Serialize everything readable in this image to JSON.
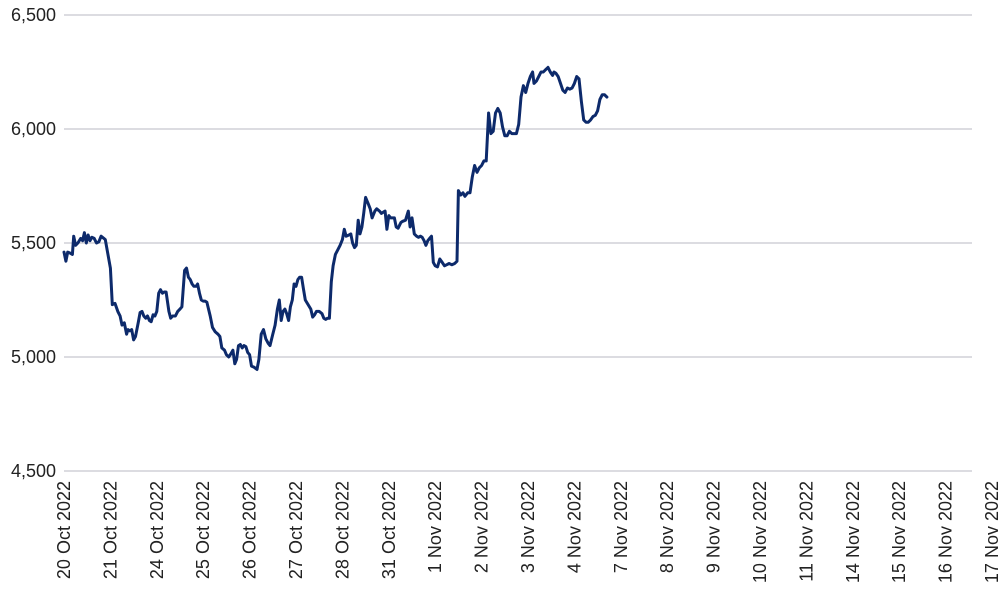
{
  "chart_data": {
    "type": "line",
    "title": "",
    "xlabel": "",
    "ylabel": "",
    "ylim": [
      4500,
      6500
    ],
    "yticks": [
      4500,
      5000,
      5500,
      6000,
      6500
    ],
    "ytick_labels": [
      "4,500",
      "5,000",
      "5,500",
      "6,000",
      "6,500"
    ],
    "grid": "horizontal",
    "legend": "none",
    "line_color": "#0d2a6b",
    "grid_color": "#b9b9c3",
    "x_tick_labels": [
      "20 Oct 2022",
      "21 Oct 2022",
      "24 Oct 2022",
      "25 Oct 2022",
      "26 Oct 2022",
      "27 Oct 2022",
      "28 Oct 2022",
      "31 Oct 2022",
      "1 Nov 2022",
      "2 Nov 2022",
      "3 Nov 2022",
      "4 Nov 2022",
      "7 Nov 2022",
      "8 Nov 2022",
      "9 Nov 2022",
      "10 Nov 2022",
      "11 Nov 2022",
      "14 Nov 2022",
      "15 Nov 2022",
      "16 Nov 2022",
      "17 Nov 2022"
    ],
    "series": [
      {
        "values": [
          [
            0.0,
            5460
          ],
          [
            0.04,
            5420
          ],
          [
            0.08,
            5460
          ],
          [
            0.14,
            5455
          ],
          [
            0.18,
            5450
          ],
          [
            0.21,
            5530
          ],
          [
            0.25,
            5490
          ],
          [
            0.3,
            5500
          ],
          [
            0.36,
            5520
          ],
          [
            0.4,
            5510
          ],
          [
            0.44,
            5545
          ],
          [
            0.48,
            5500
          ],
          [
            0.52,
            5535
          ],
          [
            0.56,
            5510
          ],
          [
            0.6,
            5525
          ],
          [
            0.65,
            5520
          ],
          [
            0.7,
            5500
          ],
          [
            0.75,
            5505
          ],
          [
            0.8,
            5530
          ],
          [
            0.86,
            5520
          ],
          [
            0.89,
            5515
          ],
          [
            1.0,
            5390
          ],
          [
            1.04,
            5230
          ],
          [
            1.1,
            5235
          ],
          [
            1.16,
            5200
          ],
          [
            1.21,
            5180
          ],
          [
            1.25,
            5140
          ],
          [
            1.3,
            5150
          ],
          [
            1.35,
            5100
          ],
          [
            1.38,
            5120
          ],
          [
            1.42,
            5115
          ],
          [
            1.46,
            5120
          ],
          [
            1.5,
            5075
          ],
          [
            1.54,
            5090
          ],
          [
            1.6,
            5150
          ],
          [
            1.64,
            5195
          ],
          [
            1.68,
            5200
          ],
          [
            1.72,
            5180
          ],
          [
            1.76,
            5170
          ],
          [
            1.8,
            5180
          ],
          [
            1.84,
            5160
          ],
          [
            1.88,
            5155
          ],
          [
            1.92,
            5185
          ],
          [
            1.96,
            5180
          ],
          [
            2.0,
            5200
          ],
          [
            2.04,
            5280
          ],
          [
            2.08,
            5295
          ],
          [
            2.12,
            5280
          ],
          [
            2.16,
            5285
          ],
          [
            2.2,
            5285
          ],
          [
            2.26,
            5200
          ],
          [
            2.3,
            5170
          ],
          [
            2.34,
            5180
          ],
          [
            2.4,
            5180
          ],
          [
            2.45,
            5200
          ],
          [
            2.5,
            5210
          ],
          [
            2.54,
            5220
          ],
          [
            2.6,
            5380
          ],
          [
            2.64,
            5390
          ],
          [
            2.68,
            5350
          ],
          [
            2.72,
            5340
          ],
          [
            2.76,
            5320
          ],
          [
            2.8,
            5310
          ],
          [
            2.85,
            5310
          ],
          [
            2.88,
            5320
          ],
          [
            2.92,
            5280
          ],
          [
            2.96,
            5250
          ],
          [
            3.0,
            5245
          ],
          [
            3.04,
            5245
          ],
          [
            3.08,
            5240
          ],
          [
            3.15,
            5180
          ],
          [
            3.2,
            5130
          ],
          [
            3.26,
            5110
          ],
          [
            3.32,
            5100
          ],
          [
            3.36,
            5090
          ],
          [
            3.4,
            5040
          ],
          [
            3.46,
            5030
          ],
          [
            3.5,
            5010
          ],
          [
            3.55,
            5000
          ],
          [
            3.6,
            5015
          ],
          [
            3.64,
            5030
          ],
          [
            3.68,
            4970
          ],
          [
            3.72,
            4990
          ],
          [
            3.76,
            5050
          ],
          [
            3.8,
            5055
          ],
          [
            3.84,
            5040
          ],
          [
            3.88,
            5050
          ],
          [
            3.92,
            5045
          ],
          [
            3.96,
            5020
          ],
          [
            4.0,
            5010
          ],
          [
            4.04,
            4960
          ],
          [
            4.1,
            4955
          ],
          [
            4.16,
            4945
          ],
          [
            4.2,
            4990
          ],
          [
            4.25,
            5100
          ],
          [
            4.3,
            5120
          ],
          [
            4.35,
            5080
          ],
          [
            4.4,
            5060
          ],
          [
            4.44,
            5050
          ],
          [
            4.5,
            5100
          ],
          [
            4.55,
            5140
          ],
          [
            4.6,
            5210
          ],
          [
            4.64,
            5250
          ],
          [
            4.68,
            5160
          ],
          [
            4.72,
            5200
          ],
          [
            4.76,
            5210
          ],
          [
            4.8,
            5190
          ],
          [
            4.84,
            5160
          ],
          [
            4.88,
            5220
          ],
          [
            4.92,
            5250
          ],
          [
            4.96,
            5320
          ],
          [
            5.0,
            5310
          ],
          [
            5.04,
            5340
          ],
          [
            5.08,
            5350
          ],
          [
            5.12,
            5350
          ],
          [
            5.16,
            5300
          ],
          [
            5.2,
            5250
          ],
          [
            5.26,
            5230
          ],
          [
            5.32,
            5210
          ],
          [
            5.36,
            5175
          ],
          [
            5.4,
            5185
          ],
          [
            5.44,
            5200
          ],
          [
            5.5,
            5200
          ],
          [
            5.56,
            5190
          ],
          [
            5.6,
            5170
          ],
          [
            5.64,
            5165
          ],
          [
            5.68,
            5170
          ],
          [
            5.72,
            5170
          ],
          [
            5.76,
            5330
          ],
          [
            5.8,
            5400
          ],
          [
            5.85,
            5450
          ],
          [
            5.9,
            5470
          ],
          [
            5.95,
            5490
          ],
          [
            6.0,
            5515
          ],
          [
            6.04,
            5560
          ],
          [
            6.08,
            5530
          ],
          [
            6.14,
            5535
          ],
          [
            6.18,
            5540
          ],
          [
            6.22,
            5500
          ],
          [
            6.26,
            5480
          ],
          [
            6.3,
            5490
          ],
          [
            6.34,
            5600
          ],
          [
            6.38,
            5540
          ],
          [
            6.42,
            5570
          ],
          [
            6.46,
            5630
          ],
          [
            6.5,
            5700
          ],
          [
            6.56,
            5670
          ],
          [
            6.6,
            5650
          ],
          [
            6.64,
            5610
          ],
          [
            6.7,
            5640
          ],
          [
            6.74,
            5650
          ],
          [
            6.8,
            5640
          ],
          [
            6.84,
            5630
          ],
          [
            6.88,
            5635
          ],
          [
            6.92,
            5640
          ],
          [
            6.96,
            5560
          ],
          [
            7.0,
            5620
          ],
          [
            7.04,
            5610
          ],
          [
            7.08,
            5610
          ],
          [
            7.12,
            5610
          ],
          [
            7.16,
            5570
          ],
          [
            7.2,
            5565
          ],
          [
            7.26,
            5590
          ],
          [
            7.3,
            5595
          ],
          [
            7.36,
            5600
          ],
          [
            7.42,
            5640
          ],
          [
            7.46,
            5570
          ],
          [
            7.5,
            5610
          ],
          [
            7.55,
            5540
          ],
          [
            7.6,
            5530
          ],
          [
            7.64,
            5525
          ],
          [
            7.68,
            5530
          ],
          [
            7.72,
            5525
          ],
          [
            7.76,
            5510
          ],
          [
            7.8,
            5490
          ],
          [
            7.84,
            5510
          ],
          [
            7.88,
            5520
          ],
          [
            7.92,
            5530
          ],
          [
            7.96,
            5415
          ],
          [
            8.0,
            5400
          ],
          [
            8.05,
            5395
          ],
          [
            8.1,
            5430
          ],
          [
            8.15,
            5415
          ],
          [
            8.2,
            5400
          ],
          [
            8.25,
            5405
          ],
          [
            8.3,
            5410
          ],
          [
            8.36,
            5405
          ],
          [
            8.42,
            5410
          ],
          [
            8.47,
            5420
          ],
          [
            8.5,
            5730
          ],
          [
            8.55,
            5710
          ],
          [
            8.6,
            5720
          ],
          [
            8.64,
            5705
          ],
          [
            8.7,
            5720
          ],
          [
            8.75,
            5720
          ],
          [
            8.8,
            5790
          ],
          [
            8.85,
            5840
          ],
          [
            8.9,
            5810
          ],
          [
            8.95,
            5830
          ],
          [
            9.0,
            5840
          ],
          [
            9.05,
            5860
          ],
          [
            9.1,
            5860
          ],
          [
            9.15,
            6070
          ],
          [
            9.2,
            5980
          ],
          [
            9.25,
            5990
          ],
          [
            9.3,
            6070
          ],
          [
            9.35,
            6090
          ],
          [
            9.4,
            6070
          ],
          [
            9.45,
            6010
          ],
          [
            9.5,
            5970
          ],
          [
            9.55,
            5970
          ],
          [
            9.6,
            5990
          ],
          [
            9.65,
            5980
          ],
          [
            9.7,
            5980
          ],
          [
            9.75,
            5980
          ],
          [
            9.8,
            6020
          ],
          [
            9.85,
            6140
          ],
          [
            9.9,
            6190
          ],
          [
            9.95,
            6160
          ],
          [
            10.0,
            6200
          ],
          [
            10.05,
            6230
          ],
          [
            10.1,
            6250
          ],
          [
            10.13,
            6200
          ],
          [
            10.18,
            6210
          ],
          [
            10.23,
            6230
          ],
          [
            10.28,
            6250
          ],
          [
            10.33,
            6250
          ],
          [
            10.38,
            6260
          ],
          [
            10.43,
            6270
          ],
          [
            10.48,
            6250
          ],
          [
            10.53,
            6235
          ],
          [
            10.56,
            6250
          ],
          [
            10.6,
            6245
          ],
          [
            10.65,
            6230
          ],
          [
            10.7,
            6200
          ],
          [
            10.75,
            6170
          ],
          [
            10.8,
            6160
          ],
          [
            10.85,
            6180
          ],
          [
            10.9,
            6175
          ],
          [
            10.95,
            6180
          ],
          [
            11.0,
            6200
          ],
          [
            11.05,
            6230
          ],
          [
            11.1,
            6220
          ],
          [
            11.15,
            6120
          ],
          [
            11.2,
            6040
          ],
          [
            11.25,
            6030
          ],
          [
            11.3,
            6030
          ],
          [
            11.35,
            6040
          ],
          [
            11.4,
            6055
          ],
          [
            11.45,
            6060
          ],
          [
            11.5,
            6080
          ],
          [
            11.55,
            6130
          ],
          [
            11.6,
            6150
          ],
          [
            11.65,
            6150
          ],
          [
            11.7,
            6140
          ]
        ]
      }
    ]
  }
}
